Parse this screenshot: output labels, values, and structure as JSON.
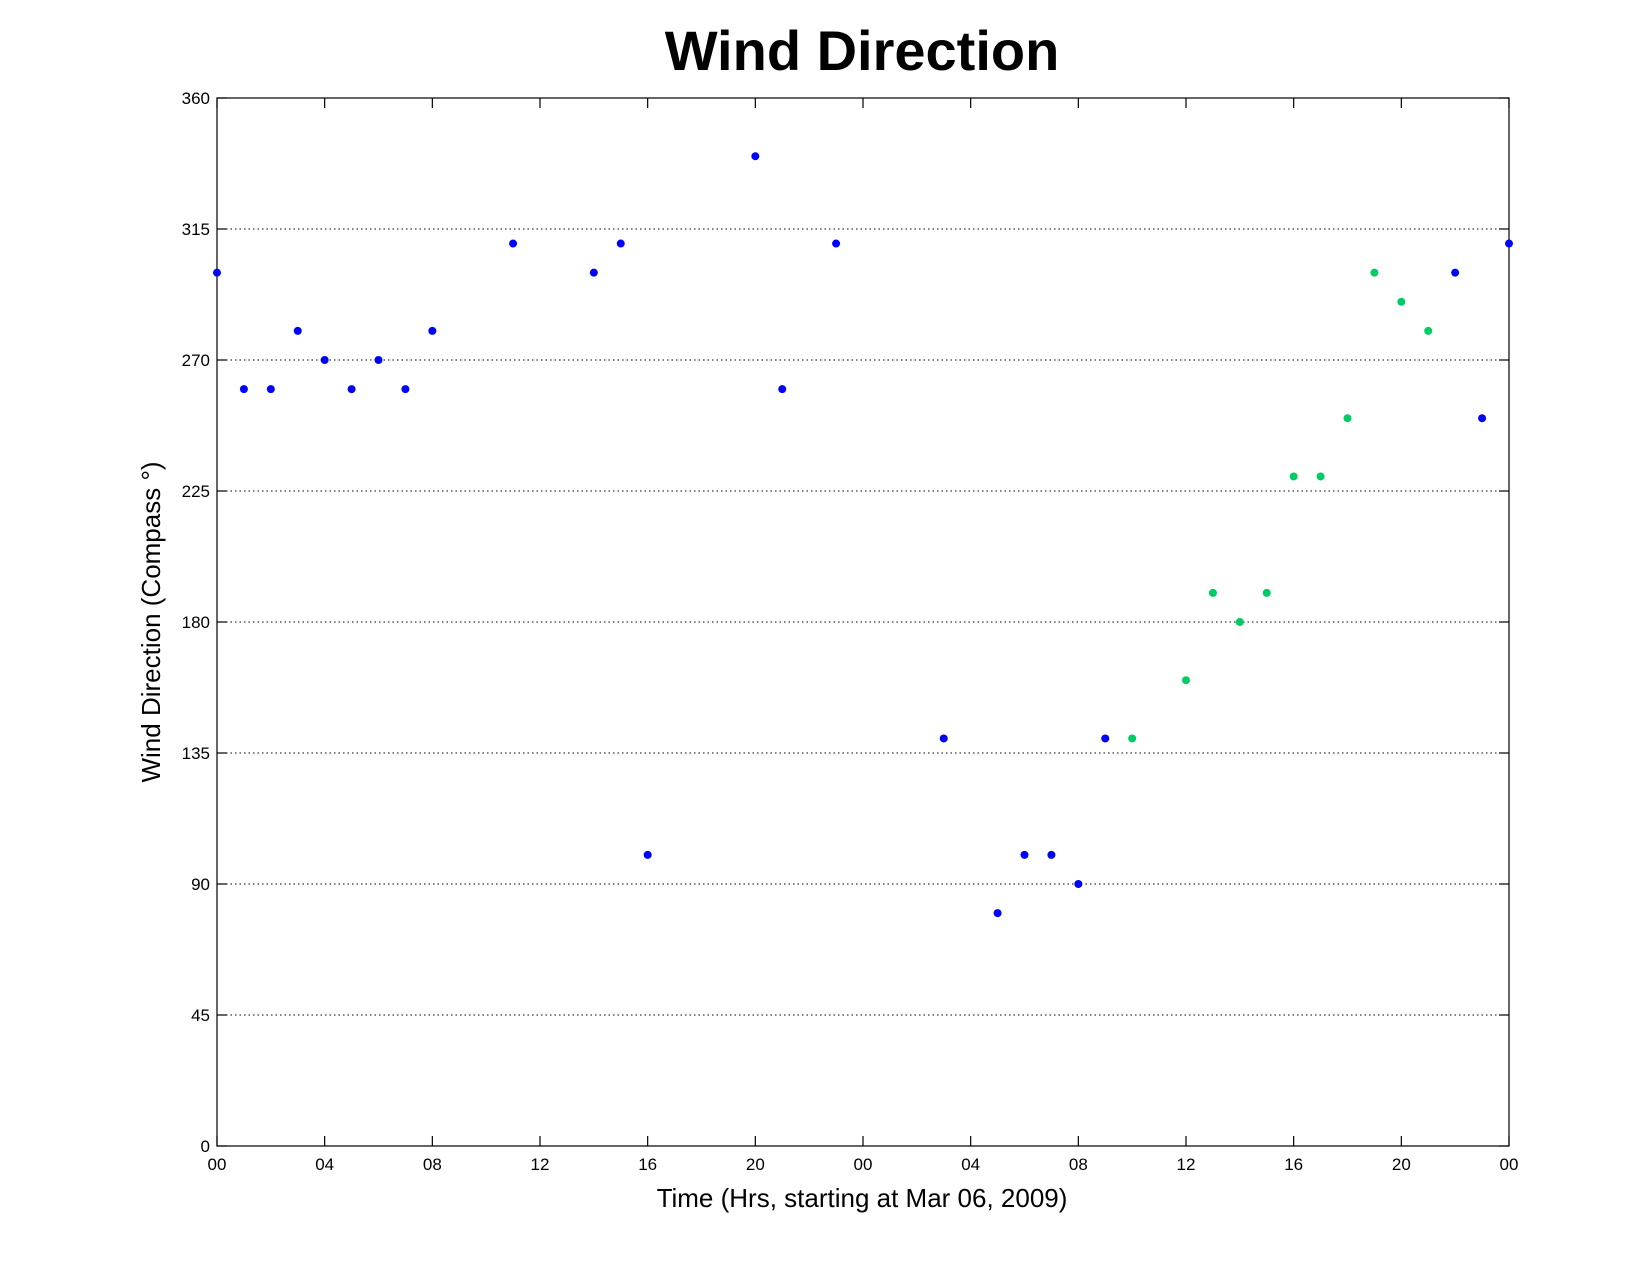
{
  "chart_data": {
    "type": "scatter",
    "title": "Wind Direction",
    "xlabel": "Time (Hrs, starting at Mar 06, 2009)",
    "ylabel": "Wind Direction (Compass  °)",
    "xlim": [
      0,
      48
    ],
    "ylim": [
      0,
      360
    ],
    "x_unit": "hours",
    "x_ticks": [
      0,
      4,
      8,
      12,
      16,
      20,
      24,
      28,
      32,
      36,
      40,
      44,
      48
    ],
    "x_tick_labels": [
      "00",
      "04",
      "08",
      "12",
      "16",
      "20",
      "00",
      "04",
      "08",
      "12",
      "16",
      "20",
      "00"
    ],
    "y_ticks": [
      0,
      45,
      90,
      135,
      180,
      225,
      270,
      315,
      360
    ],
    "y_tick_labels": [
      "0",
      "45",
      "90",
      "135",
      "180",
      "225",
      "270",
      "315",
      "360"
    ],
    "grid": "horizontal dotted",
    "series": [
      {
        "color": "#0000ff",
        "x": [
          0,
          1,
          2,
          3,
          4,
          5,
          6,
          7,
          8,
          11,
          14,
          15,
          16,
          20,
          21,
          23,
          27,
          29,
          30,
          31,
          32,
          33,
          46,
          47,
          48
        ],
        "y": [
          300,
          260,
          260,
          280,
          270,
          260,
          270,
          260,
          280,
          310,
          300,
          310,
          100,
          340,
          260,
          310,
          140,
          80,
          100,
          100,
          90,
          140,
          300,
          250,
          310
        ]
      },
      {
        "color": "#00cc66",
        "x": [
          34,
          36,
          37,
          38,
          39,
          40,
          41,
          42,
          43,
          44,
          45
        ],
        "y": [
          140,
          160,
          190,
          180,
          190,
          230,
          230,
          250,
          300,
          290,
          280
        ]
      }
    ]
  }
}
